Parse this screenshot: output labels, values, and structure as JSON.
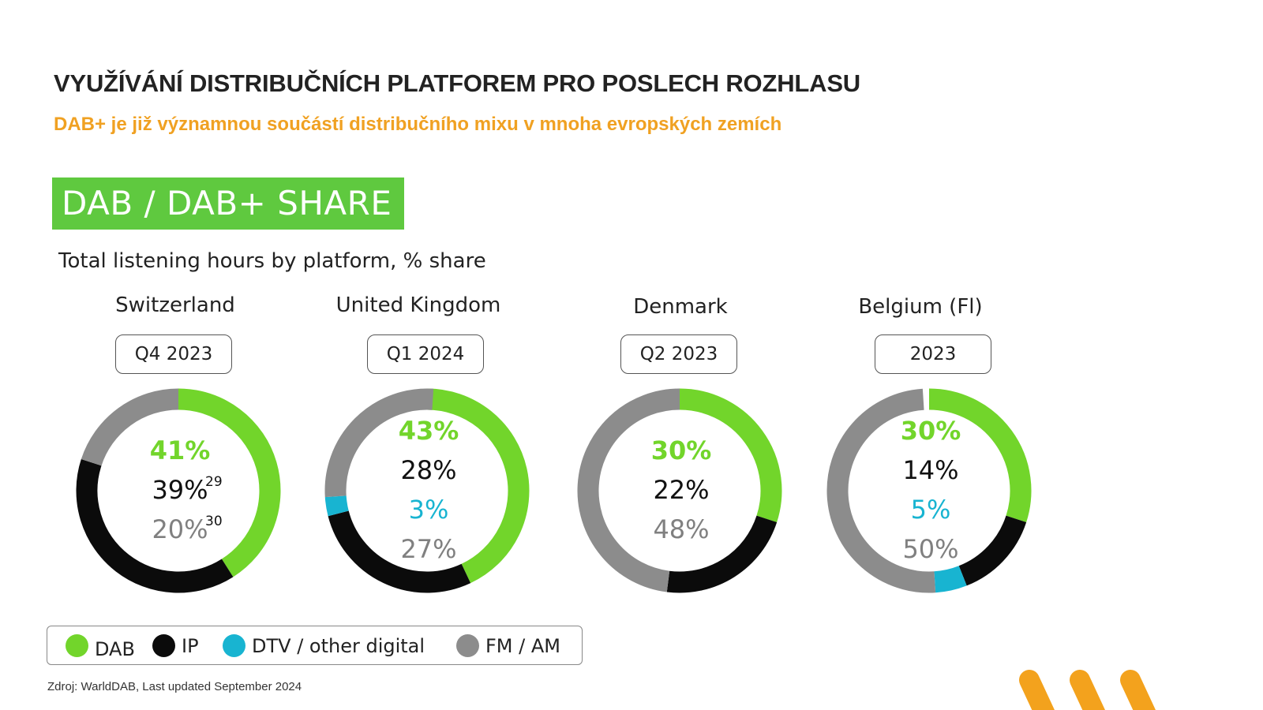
{
  "title": "VYUŽÍVÁNÍ DISTRIBUČNÍCH PLATFOREM PRO POSLECH ROZHLASU",
  "subtitle": "DAB+ je již významnou součástí distribučního mixu v mnoha evropských zemích",
  "banner": "DAB / DAB+ SHARE",
  "caption": "Total listening hours by platform, % share",
  "colors": {
    "DAB": "#72d52b",
    "IP": "#0b0b0b",
    "DTV": "#18b4d1",
    "FM": "#8c8c8c",
    "accent": "#f0a122",
    "banner": "#5fc93f"
  },
  "chart_data": {
    "type": "donut",
    "title": "Total listening hours by platform, % share",
    "legend": [
      "DAB",
      "IP",
      "DTV / other digital",
      "FM / AM"
    ],
    "series_keys": [
      "DAB",
      "IP",
      "DTV",
      "FM"
    ],
    "countries": [
      {
        "name": "Switzerland",
        "period": "Q4 2023",
        "values": {
          "DAB": 41,
          "IP": 39,
          "DTV": 0,
          "FM": 20
        },
        "labels": [
          {
            "text": "41%",
            "series": "DAB",
            "bold": true
          },
          {
            "text": "39%",
            "series": "IP",
            "sup": "29"
          },
          {
            "text": "20%",
            "series": "FM",
            "sup": "30"
          }
        ]
      },
      {
        "name": "United Kingdom",
        "period": "Q1 2024",
        "values": {
          "DAB": 43,
          "IP": 28,
          "DTV": 3,
          "FM": 27
        },
        "labels": [
          {
            "text": "43%",
            "series": "DAB",
            "bold": true
          },
          {
            "text": "28%",
            "series": "IP"
          },
          {
            "text": "3%",
            "series": "DTV"
          },
          {
            "text": "27%",
            "series": "FM"
          }
        ]
      },
      {
        "name": "Denmark",
        "period": "Q2 2023",
        "values": {
          "DAB": 30,
          "IP": 22,
          "DTV": 0,
          "FM": 48
        },
        "labels": [
          {
            "text": "30%",
            "series": "DAB",
            "bold": true
          },
          {
            "text": "22%",
            "series": "IP"
          },
          {
            "text": "48%",
            "series": "FM"
          }
        ]
      },
      {
        "name": "Belgium (Fl)",
        "period": "2023",
        "values": {
          "DAB": 30,
          "IP": 14,
          "DTV": 5,
          "FM": 50
        },
        "labels": [
          {
            "text": "30%",
            "series": "DAB",
            "bold": true
          },
          {
            "text": "14%",
            "series": "IP"
          },
          {
            "text": "5%",
            "series": "DTV"
          },
          {
            "text": "50%",
            "series": "FM"
          }
        ]
      }
    ]
  },
  "source": "Zdroj: WarldDAB, Last updated September 2024"
}
